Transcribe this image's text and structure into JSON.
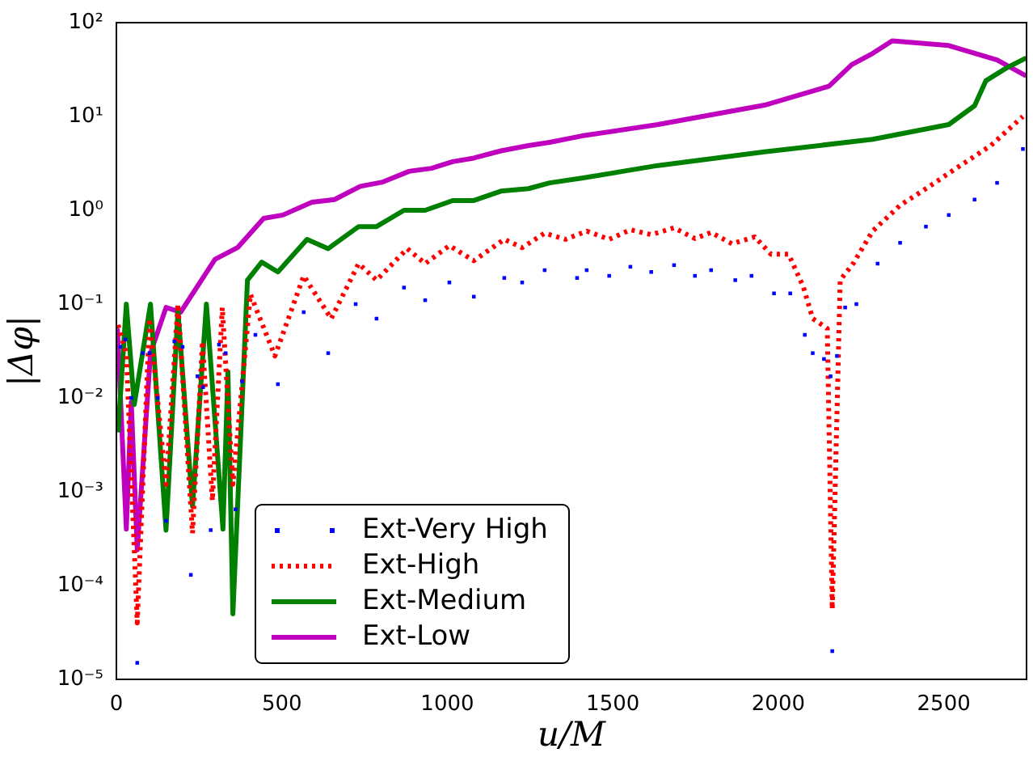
{
  "chart_data": {
    "type": "line",
    "xlabel": "u/M",
    "ylabel": "|Δφ|",
    "log": "y",
    "grid": false,
    "legend": "bottom left",
    "xlim": [
      0,
      2750
    ],
    "xticks": [
      0,
      500,
      1000,
      1500,
      2000,
      2500
    ],
    "ylim": [
      1e-05,
      100
    ],
    "yticks": [
      {
        "value": 1e-05,
        "label": "10⁻⁵"
      },
      {
        "value": 0.0001,
        "label": "10⁻⁴"
      },
      {
        "value": 0.001,
        "label": "10⁻³"
      },
      {
        "value": 0.01,
        "label": "10⁻²"
      },
      {
        "value": 0.1,
        "label": "10⁻¹"
      },
      {
        "value": 1,
        "label": "10⁰"
      },
      {
        "value": 10,
        "label": "10¹"
      },
      {
        "value": 100,
        "label": "10²"
      }
    ],
    "series": [
      {
        "name": "Ext-Very High",
        "type": "scatter",
        "marker": "square",
        "color": "#0000ff",
        "x": [
          12,
          27,
          45,
          63,
          80,
          100,
          125,
          150,
          175,
          200,
          225,
          245,
          262,
          285,
          310,
          330,
          360,
          380,
          420,
          488,
          566,
          640,
          723,
          786,
          869,
          933,
          1006,
          1080,
          1172,
          1226,
          1294,
          1392,
          1421,
          1489,
          1553,
          1616,
          1685,
          1748,
          1797,
          1870,
          1919,
          1987,
          2036,
          2080,
          2104,
          2138,
          2158,
          2163,
          2177,
          2202,
          2236,
          2300,
          2368,
          2446,
          2515,
          2593,
          2661,
          2739
        ],
        "values": [
          0.035,
          0.042,
          0.01,
          1.5e-05,
          0.03,
          0.03,
          0.01,
          0.00049,
          0.04,
          0.035,
          0.00013,
          0.017,
          0.013,
          0.00039,
          0.037,
          0.03,
          0.00065,
          0.015,
          0.047,
          0.014,
          0.082,
          0.03,
          0.1,
          0.07,
          0.15,
          0.11,
          0.17,
          0.12,
          0.19,
          0.17,
          0.23,
          0.19,
          0.23,
          0.2,
          0.25,
          0.22,
          0.26,
          0.2,
          0.23,
          0.18,
          0.2,
          0.13,
          0.13,
          0.047,
          0.03,
          0.026,
          0.017,
          2e-05,
          0.028,
          0.092,
          0.1,
          0.27,
          0.45,
          0.67,
          0.89,
          1.3,
          1.96,
          4.5
        ]
      },
      {
        "name": "Ext-High",
        "line_style": "dotted",
        "color": "#ff0000",
        "x": [
          5,
          30,
          63,
          100,
          150,
          186,
          230,
          260,
          290,
          320,
          352,
          405,
          479,
          566,
          649,
          732,
          786,
          879,
          933,
          1006,
          1080,
          1172,
          1226,
          1294,
          1357,
          1421,
          1489,
          1553,
          1616,
          1685,
          1748,
          1797,
          1860,
          1929,
          1978,
          2031,
          2075,
          2104,
          2148,
          2163,
          2187,
          2226,
          2285,
          2368,
          2446,
          2544,
          2642,
          2739
        ],
        "values": [
          0.06,
          0.03,
          4e-05,
          0.07,
          0.0012,
          0.1,
          0.00036,
          0.04,
          0.0008,
          0.092,
          0.0012,
          0.127,
          0.028,
          0.2,
          0.07,
          0.27,
          0.18,
          0.39,
          0.27,
          0.42,
          0.29,
          0.49,
          0.4,
          0.57,
          0.49,
          0.6,
          0.49,
          0.62,
          0.55,
          0.65,
          0.5,
          0.58,
          0.44,
          0.52,
          0.34,
          0.34,
          0.155,
          0.07,
          0.055,
          5.6e-05,
          0.18,
          0.27,
          0.6,
          1.13,
          1.7,
          2.9,
          4.9,
          10
        ]
      },
      {
        "name": "Ext-Medium",
        "line_style": "solid",
        "color": "#008000",
        "x": [
          5,
          30,
          54,
          103,
          150,
          186,
          230,
          272,
          322,
          337,
          352,
          396,
          439,
          488,
          576,
          640,
          732,
          786,
          869,
          933,
          1016,
          1080,
          1162,
          1245,
          1309,
          1406,
          1636,
          1958,
          2285,
          2515,
          2593,
          2627,
          2690,
          2749
        ],
        "values": [
          0.0043,
          0.1,
          0.0085,
          0.1,
          0.00039,
          0.085,
          0.0007,
          0.1,
          0.0004,
          0.019,
          5e-05,
          0.18,
          0.28,
          0.22,
          0.49,
          0.39,
          0.67,
          0.67,
          1.0,
          1.0,
          1.27,
          1.27,
          1.6,
          1.7,
          1.96,
          2.2,
          3.0,
          4.2,
          5.7,
          8.2,
          13,
          24,
          33,
          42
        ]
      },
      {
        "name": "Ext-Low",
        "line_style": "solid",
        "color": "#bf00bf",
        "x": [
          3,
          30,
          45,
          63,
          103,
          150,
          194,
          298,
          366,
          445,
          503,
          591,
          659,
          737,
          805,
          884,
          952,
          1016,
          1080,
          1162,
          1245,
          1309,
          1406,
          1636,
          1958,
          2153,
          2222,
          2285,
          2344,
          2515,
          2661,
          2749
        ],
        "values": [
          0.055,
          0.0004,
          0.009,
          0.00024,
          0.03,
          0.092,
          0.082,
          0.3,
          0.4,
          0.82,
          0.89,
          1.22,
          1.3,
          1.8,
          2.0,
          2.6,
          2.8,
          3.3,
          3.6,
          4.3,
          4.9,
          5.3,
          6.2,
          8.2,
          13.2,
          21,
          35.7,
          47,
          64,
          57,
          40,
          27
        ]
      }
    ]
  }
}
